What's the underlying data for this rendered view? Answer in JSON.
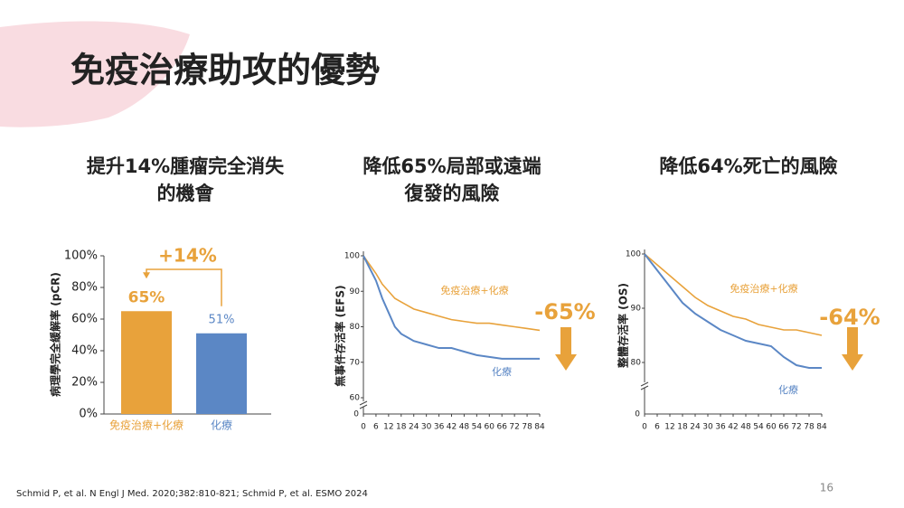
{
  "title": "免疫治療助攻的優勢",
  "footnote": "Schmid P, et al. N Engl J Med. 2020;382:810-821; Schmid P, et al. ESMO 2024",
  "page_number": "16",
  "chart_data": [
    {
      "type": "bar",
      "heading": [
        "提升14%腫瘤完全消失",
        "的機會"
      ],
      "ylabel": "病理學完全緩解率 (pCR)",
      "categories": [
        "免疫治療+化療",
        "化療"
      ],
      "values": [
        65,
        51
      ],
      "value_labels": [
        "65%",
        "51%"
      ],
      "colors": [
        "#e8a23b",
        "#5b87c5"
      ],
      "annotation": "+14%",
      "ylim": [
        0,
        100
      ],
      "yticks": [
        {
          "value": 0,
          "label": "0%"
        },
        {
          "value": 20,
          "label": "20%"
        },
        {
          "value": 40,
          "label": "40%"
        },
        {
          "value": 60,
          "label": "60%"
        },
        {
          "value": 80,
          "label": "80%"
        },
        {
          "value": 100,
          "label": "100%"
        }
      ]
    },
    {
      "type": "line",
      "heading": [
        "降低65%局部或遠端",
        "復發的風險"
      ],
      "ylabel": "無事件存活率 (EFS)",
      "annotation": "-65%",
      "x": [
        0,
        6,
        9,
        12,
        15,
        18,
        21,
        24,
        30,
        36,
        42,
        48,
        54,
        60,
        66,
        72,
        78,
        84
      ],
      "series": [
        {
          "name": "免疫治療+化療",
          "color": "#e8a23b",
          "values": [
            100,
            95,
            92,
            90,
            88,
            87,
            86,
            85,
            84,
            83,
            82,
            81.5,
            81,
            81,
            80.5,
            80,
            79.5,
            79
          ]
        },
        {
          "name": "化療",
          "color": "#5b87c5",
          "values": [
            100,
            93,
            88,
            84,
            80,
            78,
            77,
            76,
            75,
            74,
            74,
            73,
            72,
            71.5,
            71,
            71,
            71,
            71
          ]
        }
      ],
      "xlim": [
        0,
        84
      ],
      "xticks": [
        0,
        6,
        12,
        18,
        24,
        30,
        36,
        42,
        48,
        54,
        60,
        66,
        72,
        78,
        84
      ],
      "ylim": [
        60,
        100
      ],
      "yticks": [
        60,
        70,
        80,
        90,
        100
      ],
      "y_break_label": "0"
    },
    {
      "type": "line",
      "heading": [
        "降低64%死亡的風險"
      ],
      "ylabel": "整體存活率 (OS)",
      "annotation": "-64%",
      "x": [
        0,
        6,
        12,
        18,
        24,
        30,
        36,
        42,
        48,
        54,
        60,
        66,
        72,
        78,
        84
      ],
      "series": [
        {
          "name": "免疫治療+化療",
          "color": "#e8a23b",
          "values": [
            100,
            98,
            96,
            94,
            92,
            90.5,
            89.5,
            88.5,
            88,
            87,
            86.5,
            86,
            86,
            85.5,
            85
          ]
        },
        {
          "name": "化療",
          "color": "#5b87c5",
          "values": [
            100,
            97,
            94,
            91,
            89,
            87.5,
            86,
            85,
            84,
            83.5,
            83,
            81,
            79.5,
            79,
            79
          ]
        }
      ],
      "xlim": [
        0,
        84
      ],
      "xticks": [
        0,
        6,
        12,
        18,
        24,
        30,
        36,
        42,
        48,
        54,
        60,
        66,
        72,
        78,
        84
      ],
      "ylim": [
        77,
        100
      ],
      "yticks": [
        80,
        90,
        100
      ],
      "y_break_label": "0"
    }
  ]
}
